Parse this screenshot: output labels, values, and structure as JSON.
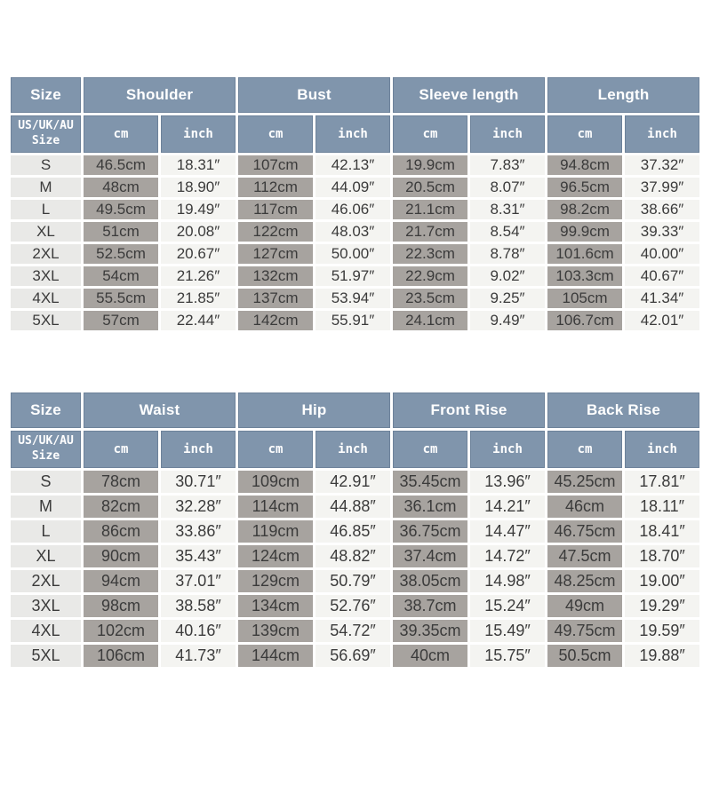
{
  "colors": {
    "header_blue": "#8095ac",
    "header_border": "#6d829a",
    "header_text": "#ffffff",
    "size_cell_bg": "#e9e9e7",
    "cm_cell_bg": "#a7a39f",
    "inch_cell_bg": "#f4f4f1",
    "body_text": "#3b3b3b",
    "page_bg": "#ffffff"
  },
  "labels": {
    "size": "Size",
    "subsize": "US/UK/AU Size",
    "cm": "cm",
    "inch": "inch"
  },
  "tables": [
    {
      "measures": [
        "Shoulder",
        "Bust",
        "Sleeve length",
        "Length"
      ],
      "rows": [
        {
          "size": "S",
          "cells": [
            "46.5cm",
            "18.31″",
            "107cm",
            "42.13″",
            "19.9cm",
            "7.83″",
            "94.8cm",
            "37.32″"
          ]
        },
        {
          "size": "M",
          "cells": [
            "48cm",
            "18.90″",
            "112cm",
            "44.09″",
            "20.5cm",
            "8.07″",
            "96.5cm",
            "37.99″"
          ]
        },
        {
          "size": "L",
          "cells": [
            "49.5cm",
            "19.49″",
            "117cm",
            "46.06″",
            "21.1cm",
            "8.31″",
            "98.2cm",
            "38.66″"
          ]
        },
        {
          "size": "XL",
          "cells": [
            "51cm",
            "20.08″",
            "122cm",
            "48.03″",
            "21.7cm",
            "8.54″",
            "99.9cm",
            "39.33″"
          ]
        },
        {
          "size": "2XL",
          "cells": [
            "52.5cm",
            "20.67″",
            "127cm",
            "50.00″",
            "22.3cm",
            "8.78″",
            "101.6cm",
            "40.00″"
          ]
        },
        {
          "size": "3XL",
          "cells": [
            "54cm",
            "21.26″",
            "132cm",
            "51.97″",
            "22.9cm",
            "9.02″",
            "103.3cm",
            "40.67″"
          ]
        },
        {
          "size": "4XL",
          "cells": [
            "55.5cm",
            "21.85″",
            "137cm",
            "53.94″",
            "23.5cm",
            "9.25″",
            "105cm",
            "41.34″"
          ]
        },
        {
          "size": "5XL",
          "cells": [
            "57cm",
            "22.44″",
            "142cm",
            "55.91″",
            "24.1cm",
            "9.49″",
            "106.7cm",
            "42.01″"
          ]
        }
      ]
    },
    {
      "measures": [
        "Waist",
        "Hip",
        "Front Rise",
        "Back Rise"
      ],
      "rows": [
        {
          "size": "S",
          "cells": [
            "78cm",
            "30.71″",
            "109cm",
            "42.91″",
            "35.45cm",
            "13.96″",
            "45.25cm",
            "17.81″"
          ]
        },
        {
          "size": "M",
          "cells": [
            "82cm",
            "32.28″",
            "114cm",
            "44.88″",
            "36.1cm",
            "14.21″",
            "46cm",
            "18.11″"
          ]
        },
        {
          "size": "L",
          "cells": [
            "86cm",
            "33.86″",
            "119cm",
            "46.85″",
            "36.75cm",
            "14.47″",
            "46.75cm",
            "18.41″"
          ]
        },
        {
          "size": "XL",
          "cells": [
            "90cm",
            "35.43″",
            "124cm",
            "48.82″",
            "37.4cm",
            "14.72″",
            "47.5cm",
            "18.70″"
          ]
        },
        {
          "size": "2XL",
          "cells": [
            "94cm",
            "37.01″",
            "129cm",
            "50.79″",
            "38.05cm",
            "14.98″",
            "48.25cm",
            "19.00″"
          ]
        },
        {
          "size": "3XL",
          "cells": [
            "98cm",
            "38.58″",
            "134cm",
            "52.76″",
            "38.7cm",
            "15.24″",
            "49cm",
            "19.29″"
          ]
        },
        {
          "size": "4XL",
          "cells": [
            "102cm",
            "40.16″",
            "139cm",
            "54.72″",
            "39.35cm",
            "15.49″",
            "49.75cm",
            "19.59″"
          ]
        },
        {
          "size": "5XL",
          "cells": [
            "106cm",
            "41.73″",
            "144cm",
            "56.69″",
            "40cm",
            "15.75″",
            "50.5cm",
            "19.88″"
          ]
        }
      ]
    }
  ]
}
